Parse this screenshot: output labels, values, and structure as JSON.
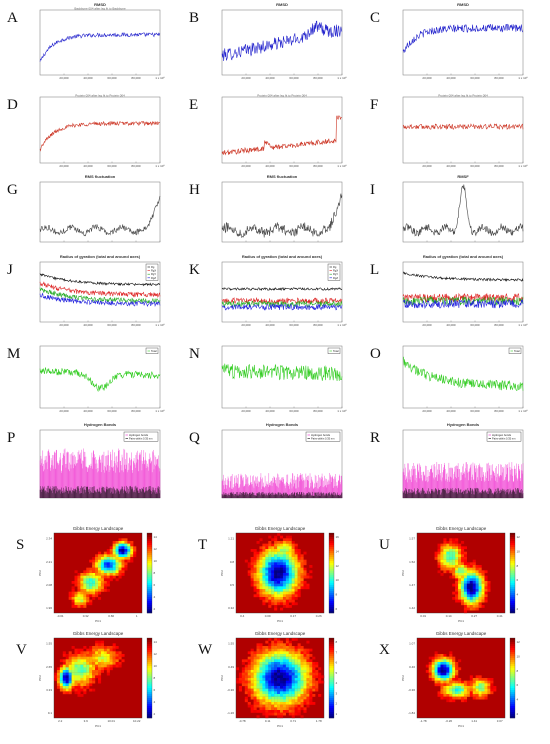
{
  "chart_data": [
    {
      "id": "A",
      "type": "line",
      "title": "RMSD",
      "subtitle": "Backbone 004 after lsq fit to Backbone",
      "x_ticks": [
        "20,000",
        "40,000",
        "60,000",
        "80,000",
        "1 x 10⁵"
      ],
      "series": [
        {
          "color": "#2222cc",
          "profile": "rise_plateau",
          "level": [
            0.2,
            0.62
          ],
          "noise": 0.03
        }
      ]
    },
    {
      "id": "B",
      "type": "line",
      "title": "RMSD",
      "subtitle": "",
      "x_ticks": [
        "20,000",
        "40,000",
        "60,000",
        "80,000",
        "1 x 10⁵"
      ],
      "series": [
        {
          "color": "#2222cc",
          "profile": "rising_bump",
          "level": [
            0.3,
            0.7
          ],
          "noise": 0.1
        }
      ]
    },
    {
      "id": "C",
      "type": "line",
      "title": "RMSD",
      "subtitle": "",
      "x_ticks": [
        "20,000",
        "40,000",
        "60,000",
        "80,000",
        "1 x 10⁵"
      ],
      "series": [
        {
          "color": "#2222cc",
          "profile": "rise_plateau",
          "level": [
            0.35,
            0.72
          ],
          "noise": 0.06
        }
      ]
    },
    {
      "id": "D",
      "type": "line",
      "title": "",
      "subtitle": "Protein 004 after lsq fit to Protein 004",
      "x_ticks": [
        "20,000",
        "40,000",
        "60,000",
        "80,000",
        "1 x 10⁵"
      ],
      "series": [
        {
          "color": "#cc3322",
          "profile": "rise_plateau",
          "level": [
            0.2,
            0.6
          ],
          "noise": 0.03
        }
      ]
    },
    {
      "id": "E",
      "type": "line",
      "title": "",
      "subtitle": "Protein 004 after lsq fit to Protein 004",
      "x_ticks": [
        "20,000",
        "40,000",
        "60,000",
        "80,000",
        "1 x 10⁵"
      ],
      "series": [
        {
          "color": "#cc3322",
          "profile": "low_spike",
          "level": [
            0.15,
            0.35
          ],
          "noise": 0.04
        }
      ]
    },
    {
      "id": "F",
      "type": "line",
      "title": "",
      "subtitle": "Protein 004 after lsq fit to Protein 004",
      "x_ticks": [
        "20,000",
        "40,000",
        "60,000",
        "80,000",
        "1 x 10⁵"
      ],
      "series": [
        {
          "color": "#cc3322",
          "profile": "flat",
          "level": [
            0.55,
            0.55
          ],
          "noise": 0.04
        }
      ]
    },
    {
      "id": "G",
      "type": "line",
      "title": "RMS fluctuation",
      "subtitle": "",
      "x_ticks": [
        "",
        "",
        "",
        "",
        ""
      ],
      "series": [
        {
          "color": "#444444",
          "profile": "rmsf",
          "level": [
            0.2,
            0.8
          ],
          "noise": 0.05
        }
      ]
    },
    {
      "id": "H",
      "type": "line",
      "title": "RMS fluctuation",
      "subtitle": "",
      "x_ticks": [
        "",
        "",
        "",
        "",
        ""
      ],
      "series": [
        {
          "color": "#444444",
          "profile": "rmsf",
          "level": [
            0.2,
            0.85
          ],
          "noise": 0.08
        }
      ]
    },
    {
      "id": "I",
      "type": "line",
      "title": "RMSF",
      "subtitle": "",
      "x_ticks": [
        "",
        "",
        "",
        "",
        ""
      ],
      "series": [
        {
          "color": "#444444",
          "profile": "rmsf_mid",
          "level": [
            0.2,
            0.9
          ],
          "noise": 0.06
        }
      ]
    },
    {
      "id": "J",
      "type": "line",
      "title": "Radius of gyration (total and around axes)",
      "subtitle": "",
      "x_ticks": [
        "20,000",
        "40,000",
        "60,000",
        "80,000",
        "1 x 10⁵"
      ],
      "legend": [
        "Rg",
        "RgX",
        "RgY",
        "RgZ"
      ],
      "series": [
        {
          "color": "#111111",
          "profile": "decay",
          "level": [
            0.8,
            0.62
          ],
          "noise": 0.02
        },
        {
          "color": "#dd2222",
          "profile": "decay",
          "level": [
            0.65,
            0.45
          ],
          "noise": 0.04
        },
        {
          "color": "#22aa22",
          "profile": "decay",
          "level": [
            0.55,
            0.35
          ],
          "noise": 0.04
        },
        {
          "color": "#2222dd",
          "profile": "decay",
          "level": [
            0.45,
            0.3
          ],
          "noise": 0.04
        }
      ]
    },
    {
      "id": "K",
      "type": "line",
      "title": "Radius of gyration (total and around axes)",
      "subtitle": "",
      "x_ticks": [
        "20,000",
        "40,000",
        "60,000",
        "80,000",
        "1 x 10⁵"
      ],
      "legend": [
        "Rg",
        "RgX",
        "RgY",
        "RgZ"
      ],
      "series": [
        {
          "color": "#111111",
          "profile": "flat",
          "level": [
            0.55,
            0.55
          ],
          "noise": 0.02
        },
        {
          "color": "#dd2222",
          "profile": "flat",
          "level": [
            0.35,
            0.35
          ],
          "noise": 0.05
        },
        {
          "color": "#22aa22",
          "profile": "flat",
          "level": [
            0.3,
            0.3
          ],
          "noise": 0.05
        },
        {
          "color": "#2222dd",
          "profile": "flat",
          "level": [
            0.25,
            0.25
          ],
          "noise": 0.05
        }
      ]
    },
    {
      "id": "L",
      "type": "line",
      "title": "Radius of gyration (total and around axes)",
      "subtitle": "",
      "x_ticks": [
        "20,000",
        "40,000",
        "60,000",
        "80,000",
        "1 x 10⁵"
      ],
      "legend": [],
      "series": [
        {
          "color": "#111111",
          "profile": "decay",
          "level": [
            0.82,
            0.7
          ],
          "noise": 0.02
        },
        {
          "color": "#dd2222",
          "profile": "flat",
          "level": [
            0.4,
            0.4
          ],
          "noise": 0.07
        },
        {
          "color": "#22aa22",
          "profile": "flat",
          "level": [
            0.35,
            0.35
          ],
          "noise": 0.07
        },
        {
          "color": "#2222dd",
          "profile": "flat",
          "level": [
            0.3,
            0.3
          ],
          "noise": 0.07
        }
      ]
    },
    {
      "id": "M",
      "type": "line",
      "title": "",
      "subtitle": "",
      "x_ticks": [
        "20,000",
        "40,000",
        "60,000",
        "80,000",
        "1 x 10⁵"
      ],
      "legend": [
        "Total"
      ],
      "series": [
        {
          "color": "#33cc22",
          "profile": "sasa_dip",
          "level": [
            0.6,
            0.35
          ],
          "noise": 0.06
        }
      ]
    },
    {
      "id": "N",
      "type": "line",
      "title": "",
      "subtitle": "",
      "x_ticks": [
        "20,000",
        "40,000",
        "60,000",
        "80,000",
        "1 x 10⁵"
      ],
      "legend": [
        "Total"
      ],
      "series": [
        {
          "color": "#33cc22",
          "profile": "noisy",
          "level": [
            0.6,
            0.55
          ],
          "noise": 0.12
        }
      ]
    },
    {
      "id": "O",
      "type": "line",
      "title": "",
      "subtitle": "",
      "x_ticks": [
        "20,000",
        "40,000",
        "60,000",
        "80,000",
        "1 x 10⁵"
      ],
      "legend": [
        "Total"
      ],
      "series": [
        {
          "color": "#33cc22",
          "profile": "decay",
          "level": [
            0.75,
            0.35
          ],
          "noise": 0.08
        }
      ]
    },
    {
      "id": "P",
      "type": "line",
      "title": "Hydrogen Bonds",
      "subtitle": "",
      "x_ticks": [
        "",
        "",
        "",
        "",
        ""
      ],
      "legend": [
        "Hydrogen bonds",
        "Pairs within 0.35 nm"
      ],
      "series": [
        {
          "color": "#ee22cc",
          "profile": "hbond_high",
          "level": [
            0.55,
            0.55
          ],
          "noise": 0.18
        },
        {
          "color": "#111111",
          "profile": "hbond_low",
          "level": [
            0.12,
            0.12
          ],
          "noise": 0.06
        }
      ]
    },
    {
      "id": "Q",
      "type": "line",
      "title": "Hydrogen Bonds",
      "subtitle": "",
      "x_ticks": [
        "",
        "",
        "",
        "",
        ""
      ],
      "legend": [
        "Hydrogen bonds",
        "Pairs within 0.35 nm"
      ],
      "series": [
        {
          "color": "#ee22cc",
          "profile": "hbond_mid",
          "level": [
            0.25,
            0.25
          ],
          "noise": 0.12
        },
        {
          "color": "#111111",
          "profile": "hbond_low",
          "level": [
            0.06,
            0.06
          ],
          "noise": 0.03
        }
      ]
    },
    {
      "id": "R",
      "type": "line",
      "title": "Hydrogen Bonds",
      "subtitle": "",
      "x_ticks": [
        "",
        "",
        "",
        "",
        ""
      ],
      "legend": [
        "Hydrogen bonds",
        "Pairs within 0.35 nm"
      ],
      "series": [
        {
          "color": "#ee22cc",
          "profile": "hbond_mid",
          "level": [
            0.38,
            0.38
          ],
          "noise": 0.15
        },
        {
          "color": "#111111",
          "profile": "hbond_low",
          "level": [
            0.1,
            0.1
          ],
          "noise": 0.05
        }
      ]
    },
    {
      "id": "S",
      "type": "heatmap",
      "title": "Gibbs Energy Landscape",
      "xlabel": "PC1",
      "ylabel": "PC2",
      "x_ticks": [
        "-0.01",
        "0.32",
        "0.66",
        "1"
      ],
      "y_ticks": [
        "2.34",
        "2.21",
        "2.08",
        "1.96"
      ],
      "colorbar_ticks": [
        "14",
        "12",
        "10",
        "8",
        "6",
        "4",
        "2"
      ],
      "shape": "diagonal"
    },
    {
      "id": "T",
      "type": "heatmap",
      "title": "Gibbs Energy Landscape",
      "xlabel": "PC1",
      "ylabel": "PC2",
      "x_ticks": [
        "0.4",
        "0.09",
        "0.17",
        "0.26"
      ],
      "y_ticks": [
        "1.21",
        "0.8",
        "0.5",
        "0.32"
      ],
      "colorbar_ticks": [
        "16",
        "14",
        "12",
        "10",
        "8",
        "6"
      ],
      "shape": "center_blob"
    },
    {
      "id": "U",
      "type": "heatmap",
      "title": "Gibbs Energy Landscape",
      "xlabel": "PC1",
      "ylabel": "PC2",
      "x_ticks": [
        "0.01",
        "0.14",
        "0.27",
        "0.41"
      ],
      "y_ticks": [
        "1.57",
        "1.52",
        "1.47",
        "1.42"
      ],
      "colorbar_ticks": [
        "12",
        "10",
        "8",
        "6",
        "4",
        "2"
      ],
      "shape": "upper_right_tail"
    },
    {
      "id": "V",
      "type": "heatmap",
      "title": "Gibbs Energy Landscape",
      "xlabel": "PC1",
      "ylabel": "PC2",
      "x_ticks": [
        "2.2",
        "3.9",
        "10.01",
        "10.22"
      ],
      "y_ticks": [
        "1.55",
        "2.65",
        "3.33",
        "9.1"
      ],
      "colorbar_ticks": [
        "14",
        "12",
        "10",
        "8",
        "6",
        "4",
        "2"
      ],
      "shape": "left_cluster"
    },
    {
      "id": "W",
      "type": "heatmap",
      "title": "Gibbs Energy Landscape",
      "xlabel": "PC1",
      "ylabel": "PC2",
      "x_ticks": [
        "-0.78",
        "0.11",
        "0.71",
        "1.78"
      ],
      "y_ticks": [
        "1.55",
        "0.49",
        "-0.36",
        "-1.26"
      ],
      "colorbar_ticks": [
        "8",
        "7",
        "6",
        "5",
        "4",
        "3",
        "2",
        "1"
      ],
      "shape": "big_center"
    },
    {
      "id": "X",
      "type": "heatmap",
      "title": "Gibbs Energy Landscape",
      "xlabel": "PC1",
      "ylabel": "PC2",
      "x_ticks": [
        "-1.78",
        "-0.26",
        "1.41",
        "3.07"
      ],
      "y_ticks": [
        "1.07",
        "0.46",
        "-0.36",
        "-1.84"
      ],
      "colorbar_ticks": [
        "12",
        "10",
        "8",
        "6",
        "4",
        "2"
      ],
      "shape": "arc"
    }
  ]
}
